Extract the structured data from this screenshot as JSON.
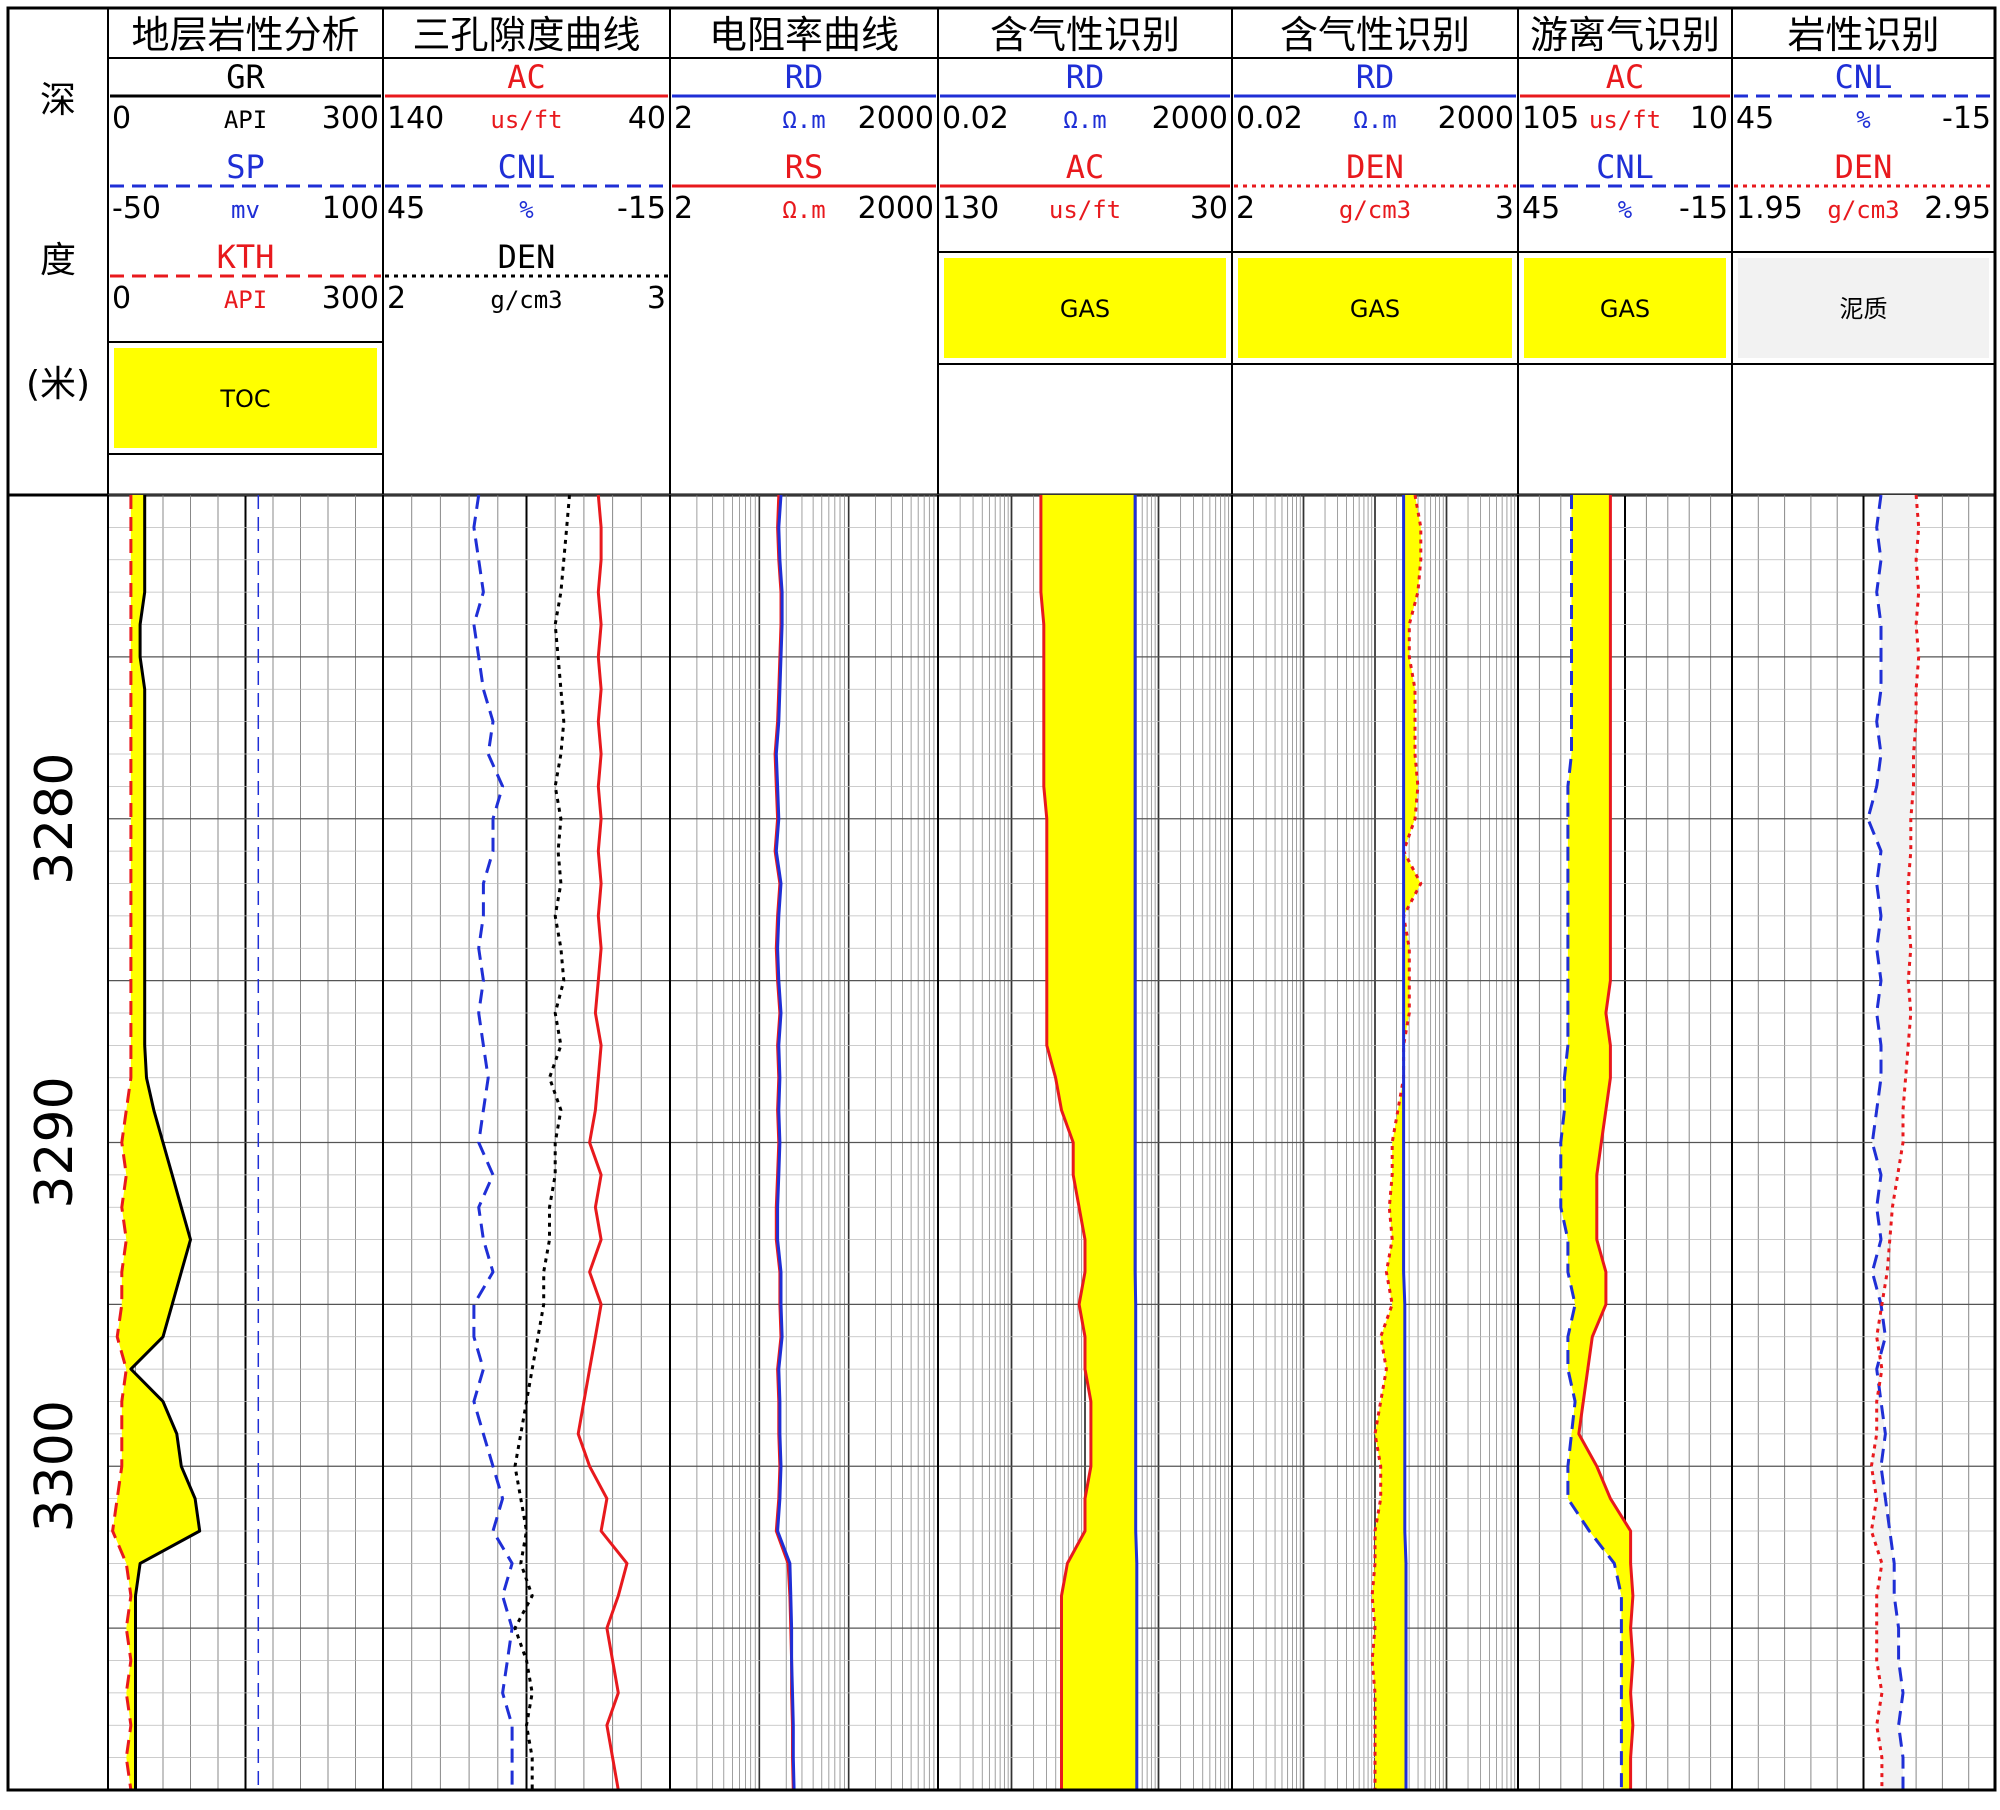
{
  "depth_header": {
    "chars": [
      "深",
      "度",
      "(米)"
    ]
  },
  "colors": {
    "red": "#e8191d",
    "blue": "#1f2fd6",
    "black": "#000000",
    "fill_yellow": "#ffff00",
    "grid": "#555555",
    "shale_fill": "#f2f2f2"
  },
  "tracks": [
    {
      "title": "地层岩性分析",
      "scale": "linear",
      "curves": [
        {
          "name": "GR",
          "unit": "API",
          "min": "0",
          "max": "300",
          "color": "black",
          "dash": "solid"
        },
        {
          "name": "SP",
          "unit": "mv",
          "min": "-50",
          "max": "100",
          "color": "blue",
          "dash": "dashed"
        },
        {
          "name": "KTH",
          "unit": "API",
          "min": "0",
          "max": "300",
          "color": "red",
          "dash": "dashed"
        }
      ],
      "fills": [
        {
          "label": "TOC",
          "pattern": "yellow"
        }
      ]
    },
    {
      "title": "三孔隙度曲线",
      "scale": "linear",
      "curves": [
        {
          "name": "AC",
          "unit": "us/ft",
          "min": "140",
          "max": "40",
          "color": "red",
          "dash": "solid"
        },
        {
          "name": "CNL",
          "unit": "%",
          "min": "45",
          "max": "-15",
          "color": "blue",
          "dash": "dashed"
        },
        {
          "name": "DEN",
          "unit": "g/cm3",
          "min": "2",
          "max": "3",
          "color": "black",
          "dash": "dotted"
        }
      ],
      "fills": []
    },
    {
      "title": "电阻率曲线",
      "scale": "log",
      "curves": [
        {
          "name": "RD",
          "unit": "Ω.m",
          "min": "2",
          "max": "2000",
          "color": "blue",
          "dash": "solid"
        },
        {
          "name": "RS",
          "unit": "Ω.m",
          "min": "2",
          "max": "2000",
          "color": "red",
          "dash": "solid"
        }
      ],
      "fills": []
    },
    {
      "title": "含气性识别",
      "scale": "log",
      "curves": [
        {
          "name": "RD",
          "unit": "Ω.m",
          "min": "0.02",
          "max": "2000",
          "color": "blue",
          "dash": "solid"
        },
        {
          "name": "AC",
          "unit": "us/ft",
          "min": "130",
          "max": "30",
          "color": "red",
          "dash": "solid"
        }
      ],
      "fills": [
        {
          "label": "GAS",
          "pattern": "yellow"
        }
      ]
    },
    {
      "title": "含气性识别",
      "scale": "log",
      "curves": [
        {
          "name": "RD",
          "unit": "Ω.m",
          "min": "0.02",
          "max": "2000",
          "color": "blue",
          "dash": "solid"
        },
        {
          "name": "DEN",
          "unit": "g/cm3",
          "min": "2",
          "max": "3",
          "color": "red",
          "dash": "dotted"
        }
      ],
      "fills": [
        {
          "label": "GAS",
          "pattern": "yellow"
        }
      ]
    },
    {
      "title": "游离气识别",
      "scale": "linear",
      "curves": [
        {
          "name": "AC",
          "unit": "us/ft",
          "min": "105",
          "max": "10",
          "color": "red",
          "dash": "solid"
        },
        {
          "name": "CNL",
          "unit": "%",
          "min": "45",
          "max": "-15",
          "color": "blue",
          "dash": "dashed"
        }
      ],
      "fills": [
        {
          "label": "GAS",
          "pattern": "yellow"
        }
      ]
    },
    {
      "title": "岩性识别",
      "scale": "linear",
      "curves": [
        {
          "name": "CNL",
          "unit": "%",
          "min": "45",
          "max": "-15",
          "color": "blue",
          "dash": "dashed"
        },
        {
          "name": "DEN",
          "unit": "g/cm3",
          "min": "1.95",
          "max": "2.95",
          "color": "red",
          "dash": "dotted"
        }
      ],
      "fills": [
        {
          "label": "泥质",
          "pattern": "shale"
        }
      ]
    }
  ],
  "chart_data": {
    "type": "well-log",
    "depth_unit": "米",
    "depth_range": [
      3270,
      3310
    ],
    "depth_ticks": [
      3280,
      3290,
      3300
    ],
    "depth": [
      3270,
      3271,
      3272,
      3273,
      3274,
      3275,
      3276,
      3277,
      3278,
      3279,
      3280,
      3281,
      3282,
      3283,
      3284,
      3285,
      3286,
      3287,
      3288,
      3289,
      3290,
      3291,
      3292,
      3293,
      3294,
      3295,
      3296,
      3297,
      3298,
      3299,
      3300,
      3301,
      3302,
      3303,
      3304,
      3305,
      3306,
      3307,
      3308,
      3309,
      3310
    ],
    "curves": {
      "GR": [
        40,
        40,
        40,
        40,
        35,
        35,
        40,
        40,
        40,
        40,
        40,
        40,
        40,
        40,
        40,
        40,
        40,
        40,
        42,
        50,
        60,
        70,
        80,
        90,
        80,
        70,
        60,
        25,
        60,
        75,
        80,
        95,
        100,
        35,
        30,
        30,
        30,
        30,
        30,
        30,
        30
      ],
      "KTH": [
        25,
        25,
        25,
        25,
        25,
        25,
        25,
        25,
        25,
        25,
        25,
        25,
        25,
        25,
        25,
        25,
        25,
        25,
        25,
        20,
        15,
        20,
        15,
        20,
        15,
        15,
        10,
        20,
        15,
        15,
        15,
        10,
        5,
        20,
        25,
        20,
        25,
        20,
        25,
        20,
        25
      ],
      "SP": [
        32,
        32,
        32,
        32,
        32,
        32,
        32,
        32,
        32,
        32,
        32,
        32,
        32,
        32,
        32,
        32,
        32,
        32,
        32,
        32,
        32,
        32,
        32,
        32,
        32,
        32,
        32,
        32,
        32,
        32,
        32,
        32,
        32,
        32,
        32,
        32,
        32,
        32,
        32,
        32,
        32
      ],
      "T2_AC": [
        65,
        64,
        64,
        65,
        64,
        65,
        64,
        65,
        64,
        65,
        64,
        65,
        64,
        65,
        64,
        65,
        66,
        64,
        65,
        66,
        68,
        64,
        66,
        64,
        68,
        64,
        66,
        68,
        70,
        72,
        68,
        62,
        64,
        55,
        58,
        62,
        60,
        58,
        62,
        60,
        58
      ],
      "T2_CNL": [
        25,
        26,
        25,
        24,
        26,
        25,
        24,
        22,
        23,
        20,
        22,
        22,
        24,
        24,
        25,
        24,
        25,
        24,
        23,
        24,
        25,
        22,
        25,
        24,
        22,
        26,
        26,
        24,
        26,
        24,
        22,
        20,
        22,
        18,
        20,
        18,
        19,
        20,
        18,
        18,
        18
      ],
      "T2_DEN": [
        2.65,
        2.64,
        2.63,
        2.62,
        2.6,
        2.61,
        2.62,
        2.63,
        2.62,
        2.6,
        2.62,
        2.61,
        2.62,
        2.6,
        2.62,
        2.63,
        2.6,
        2.62,
        2.58,
        2.62,
        2.6,
        2.6,
        2.58,
        2.58,
        2.56,
        2.56,
        2.54,
        2.52,
        2.5,
        2.48,
        2.46,
        2.48,
        2.5,
        2.48,
        2.52,
        2.46,
        2.5,
        2.52,
        2.5,
        2.52,
        2.52
      ],
      "T3_RD": [
        35,
        33,
        34,
        36,
        36,
        35,
        34,
        33,
        31,
        32,
        33,
        31,
        35,
        33,
        32,
        33,
        35,
        33,
        34,
        33,
        34,
        33,
        32,
        32,
        35,
        35,
        36,
        33,
        34,
        34,
        35,
        34,
        32,
        44,
        45,
        46,
        46,
        47,
        48,
        48,
        49
      ],
      "T3_RS": [
        33,
        32,
        33,
        35,
        35,
        34,
        33,
        32,
        30,
        31,
        32,
        30,
        34,
        32,
        31,
        32,
        34,
        32,
        33,
        32,
        33,
        32,
        31,
        31,
        34,
        34,
        35,
        32,
        33,
        33,
        34,
        33,
        31,
        42,
        44,
        45,
        46,
        46,
        47,
        47,
        48
      ],
      "T4_RD": [
        45,
        45,
        45,
        45,
        45,
        45,
        45,
        45,
        45,
        45,
        45,
        45,
        45,
        45,
        45,
        45,
        45,
        45,
        45,
        45,
        45,
        45,
        45,
        45,
        45,
        46,
        46,
        46,
        46,
        46,
        46,
        46,
        46,
        48,
        48,
        48,
        48,
        48,
        48,
        48,
        48
      ],
      "T4_AC": [
        95,
        95,
        95,
        95,
        94,
        94,
        94,
        94,
        94,
        94,
        93,
        93,
        93,
        93,
        93,
        93,
        93,
        93,
        90,
        88,
        84,
        84,
        82,
        80,
        80,
        82,
        80,
        80,
        78,
        78,
        78,
        80,
        80,
        86,
        88,
        88,
        88,
        88,
        88,
        88,
        88
      ],
      "T5_RD": [
        20,
        20,
        20,
        20,
        20,
        20,
        20,
        20,
        20,
        20,
        20,
        20,
        20,
        20,
        20,
        20,
        20,
        20,
        20,
        20,
        20,
        20,
        20,
        20,
        20,
        21,
        21,
        21,
        21,
        21,
        21,
        21,
        21,
        22,
        22,
        22,
        22,
        22,
        22,
        22,
        22
      ],
      "T5_DEN": [
        2.64,
        2.66,
        2.66,
        2.65,
        2.62,
        2.62,
        2.64,
        2.64,
        2.64,
        2.65,
        2.64,
        2.6,
        2.66,
        2.6,
        2.62,
        2.62,
        2.62,
        2.6,
        2.6,
        2.58,
        2.56,
        2.56,
        2.55,
        2.56,
        2.54,
        2.56,
        2.52,
        2.54,
        2.52,
        2.5,
        2.52,
        2.52,
        2.5,
        2.5,
        2.49,
        2.5,
        2.49,
        2.5,
        2.5,
        2.5,
        2.5
      ],
      "T6_AC": [
        64,
        64,
        64,
        64,
        64,
        64,
        64,
        64,
        64,
        64,
        64,
        64,
        64,
        64,
        64,
        64,
        66,
        64,
        64,
        66,
        68,
        70,
        70,
        70,
        66,
        66,
        72,
        74,
        76,
        78,
        70,
        64,
        55,
        55,
        54,
        55,
        54,
        55,
        54,
        55,
        55
      ],
      "T6_CNL": [
        30,
        30,
        30,
        30,
        30,
        30,
        30,
        30,
        30,
        31,
        31,
        31,
        31,
        31,
        31,
        31,
        31,
        31,
        32,
        32,
        33,
        33,
        33,
        31,
        31,
        29,
        31,
        31,
        29,
        30,
        31,
        31,
        25,
        18,
        16,
        16,
        16,
        16,
        16,
        16,
        16
      ],
      "T7_CNL": [
        11,
        12,
        11,
        12,
        11,
        11,
        11,
        12,
        11,
        12,
        14,
        11,
        12,
        11,
        12,
        11,
        12,
        11,
        11,
        12,
        13,
        11,
        12,
        11,
        13,
        11,
        10,
        12,
        11,
        10,
        11,
        10,
        9,
        8,
        8,
        7,
        7,
        6,
        7,
        6,
        6
      ],
      "T7_DEN": [
        2.65,
        2.66,
        2.65,
        2.66,
        2.65,
        2.66,
        2.65,
        2.65,
        2.64,
        2.64,
        2.63,
        2.63,
        2.62,
        2.62,
        2.63,
        2.62,
        2.63,
        2.62,
        2.61,
        2.6,
        2.6,
        2.58,
        2.56,
        2.55,
        2.54,
        2.52,
        2.5,
        2.52,
        2.5,
        2.5,
        2.48,
        2.5,
        2.48,
        2.52,
        2.5,
        2.5,
        2.5,
        2.52,
        2.5,
        2.52,
        2.52
      ]
    }
  }
}
